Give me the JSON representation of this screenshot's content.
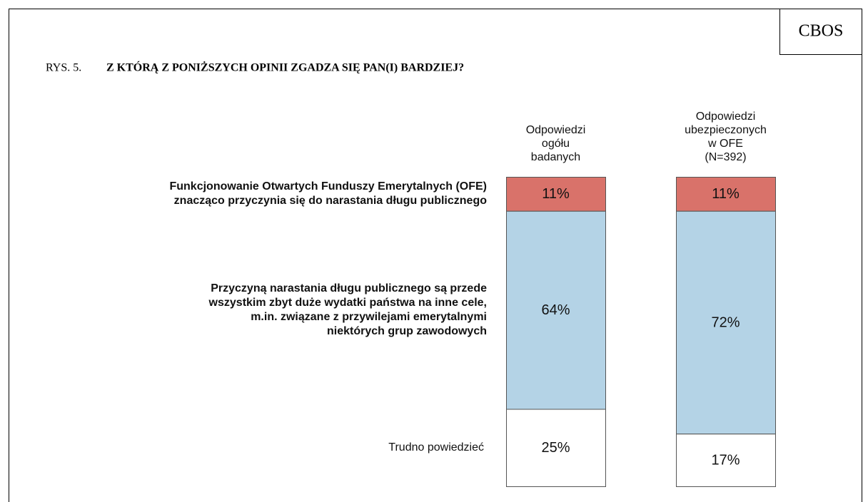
{
  "badge": "CBOS",
  "chart_data": {
    "type": "stacked_bar",
    "figure_label": "RYS. 5.",
    "title": "Z KTÓRĄ Z PONIŻSZYCH OPINII ZGADZA SIĘ PAN(I) BARDZIEJ?",
    "categories": [
      "Odpowiedzi\nogółu\nbadanych",
      "Odpowiedzi\nubezpieczonych\nw OFE\n(N=392)"
    ],
    "ylim": [
      0,
      100
    ],
    "series": [
      {
        "name": "Funkcjonowanie  Otwartych Funduszy Emerytalnych (OFE)\nznacząco przyczynia się do narastania długu publicznego",
        "color": "#d9726a",
        "values": [
          11,
          11
        ],
        "value_labels": [
          "11%",
          "11%"
        ]
      },
      {
        "name": "Przyczyną narastania długu publicznego są przede\nwszystkim zbyt duże wydatki państwa na inne cele,\nm.in. związane z przywilejami emerytalnymi\nniektórych grup zawodowych",
        "color": "#b4d3e6",
        "values": [
          64,
          72
        ],
        "value_labels": [
          "64%",
          "72%"
        ]
      },
      {
        "name": "Trudno powiedzieć",
        "color": "#ffffff",
        "values": [
          25,
          17
        ],
        "value_labels": [
          "25%",
          "17%"
        ]
      }
    ]
  }
}
